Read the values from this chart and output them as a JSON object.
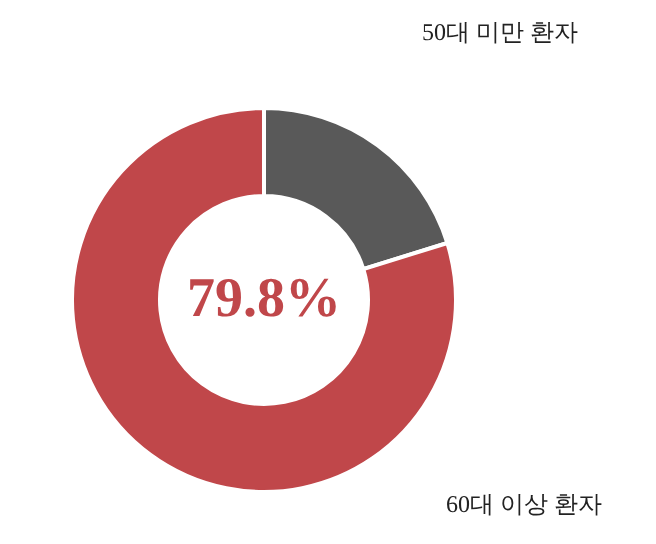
{
  "chart_data": {
    "type": "donut",
    "categories": [
      "50대 미만 환자",
      "60대 이상 환자"
    ],
    "values": [
      20.2,
      79.8
    ],
    "colors": [
      "#595959",
      "#c0474a"
    ],
    "value_labels": [
      null,
      "79.8%"
    ]
  }
}
